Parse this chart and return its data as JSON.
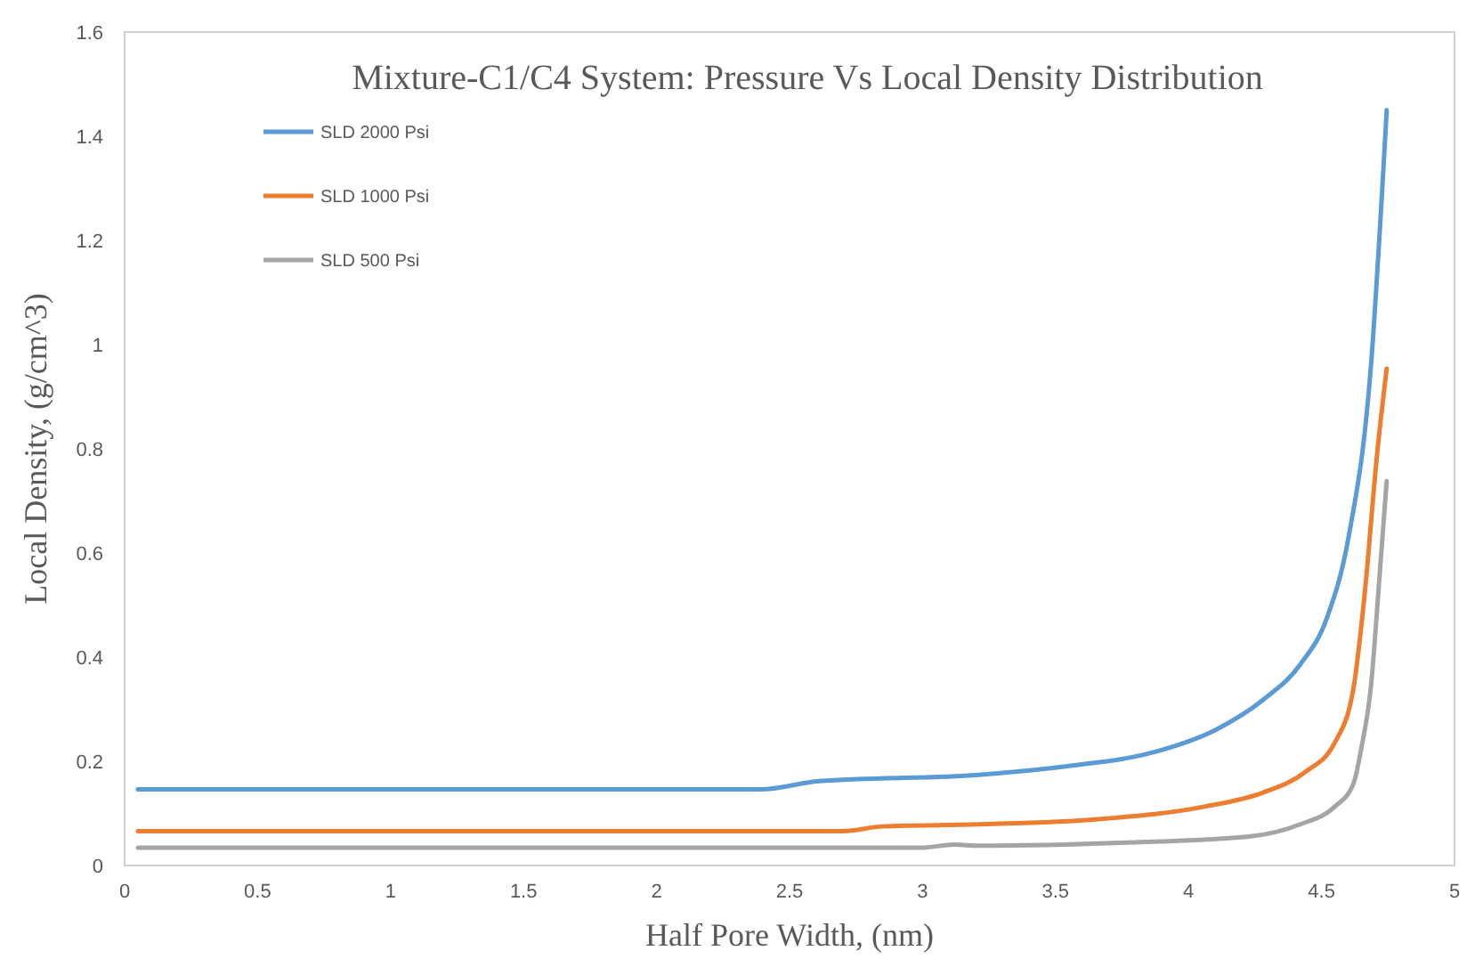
{
  "chart_data": {
    "type": "line",
    "title": "Mixture-C1/C4 System:  Pressure Vs Local Density Distribution",
    "xlabel": "Half Pore Width, (nm)",
    "ylabel": "Local Density, (g/cm^3)",
    "xlim": [
      0,
      5
    ],
    "xticks": [
      0,
      0.5,
      1,
      1.5,
      2,
      2.5,
      3,
      3.5,
      4,
      4.5,
      5
    ],
    "ylim": [
      0,
      1.6
    ],
    "yticks": [
      0,
      0.2,
      0.4,
      0.6,
      0.8,
      1,
      1.2,
      1.4,
      1.6
    ],
    "grid": false,
    "legend": "top left",
    "marker": "none",
    "line_style": "solid",
    "series": [
      {
        "name": "SLD 2000 Psi",
        "color": "#5b9bd5",
        "x": [
          0.05,
          1,
          2,
          2.39,
          2.61,
          3.21,
          3.55,
          3.88,
          4.1,
          4.28,
          4.42,
          4.52,
          4.6,
          4.685,
          4.745
        ],
        "values": [
          0.146,
          0.146,
          0.146,
          0.146,
          0.162,
          0.174,
          0.191,
          0.219,
          0.26,
          0.318,
          0.386,
          0.475,
          0.626,
          0.954,
          1.45
        ]
      },
      {
        "name": "SLD 1000 Psi",
        "color": "#ed7d31",
        "x": [
          0.05,
          1,
          2,
          2.7,
          2.85,
          3.21,
          3.66,
          4.06,
          4.28,
          4.44,
          4.55,
          4.62,
          4.66,
          4.71,
          4.745
        ],
        "values": [
          0.066,
          0.066,
          0.066,
          0.066,
          0.075,
          0.079,
          0.089,
          0.113,
          0.14,
          0.18,
          0.236,
          0.34,
          0.51,
          0.795,
          0.954
        ]
      },
      {
        "name": "SLD 500 Psi",
        "color": "#a5a5a5",
        "x": [
          0.05,
          1,
          2,
          2.99,
          3.12,
          3.21,
          3.77,
          4.22,
          4.42,
          4.55,
          4.62,
          4.65,
          4.685,
          4.72,
          4.745
        ],
        "values": [
          0.034,
          0.034,
          0.034,
          0.034,
          0.04,
          0.038,
          0.044,
          0.055,
          0.079,
          0.113,
          0.157,
          0.226,
          0.34,
          0.568,
          0.738
        ]
      }
    ]
  }
}
